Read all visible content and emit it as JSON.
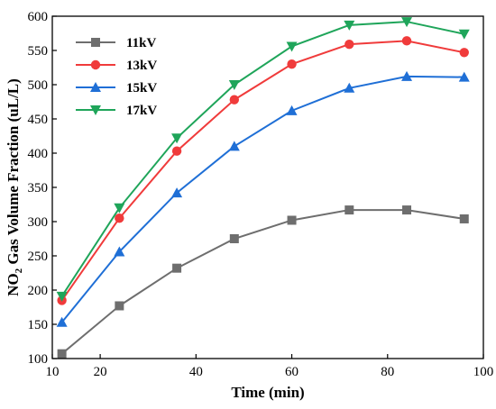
{
  "chart_data": {
    "type": "line",
    "xlabel": "Time (min)",
    "ylabel_main": "NO",
    "ylabel_sub": "2",
    "ylabel_rest": " Gas Volume Fraction (uL/L)",
    "xlim": [
      10,
      100
    ],
    "ylim": [
      100,
      600
    ],
    "xticks": [
      10,
      20,
      40,
      60,
      80,
      100
    ],
    "yticks": [
      100,
      150,
      200,
      250,
      300,
      350,
      400,
      450,
      500,
      550,
      600
    ],
    "legend_position": "top-left",
    "grid": false,
    "x": [
      12,
      24,
      36,
      48,
      60,
      72,
      84,
      96
    ],
    "series": [
      {
        "name": "11kV",
        "color": "#6e6e6e",
        "marker": "square",
        "values": [
          107,
          177,
          232,
          275,
          302,
          317,
          317,
          304
        ]
      },
      {
        "name": "13kV",
        "color": "#f03b3b",
        "marker": "circle",
        "values": [
          185,
          305,
          403,
          478,
          530,
          559,
          564,
          547
        ]
      },
      {
        "name": "15kV",
        "color": "#1f6fd6",
        "marker": "triangle-up",
        "values": [
          153,
          256,
          342,
          410,
          462,
          495,
          512,
          511
        ]
      },
      {
        "name": "17kV",
        "color": "#1fa55a",
        "marker": "triangle-down",
        "values": [
          191,
          320,
          422,
          500,
          556,
          587,
          592,
          574
        ]
      }
    ]
  }
}
